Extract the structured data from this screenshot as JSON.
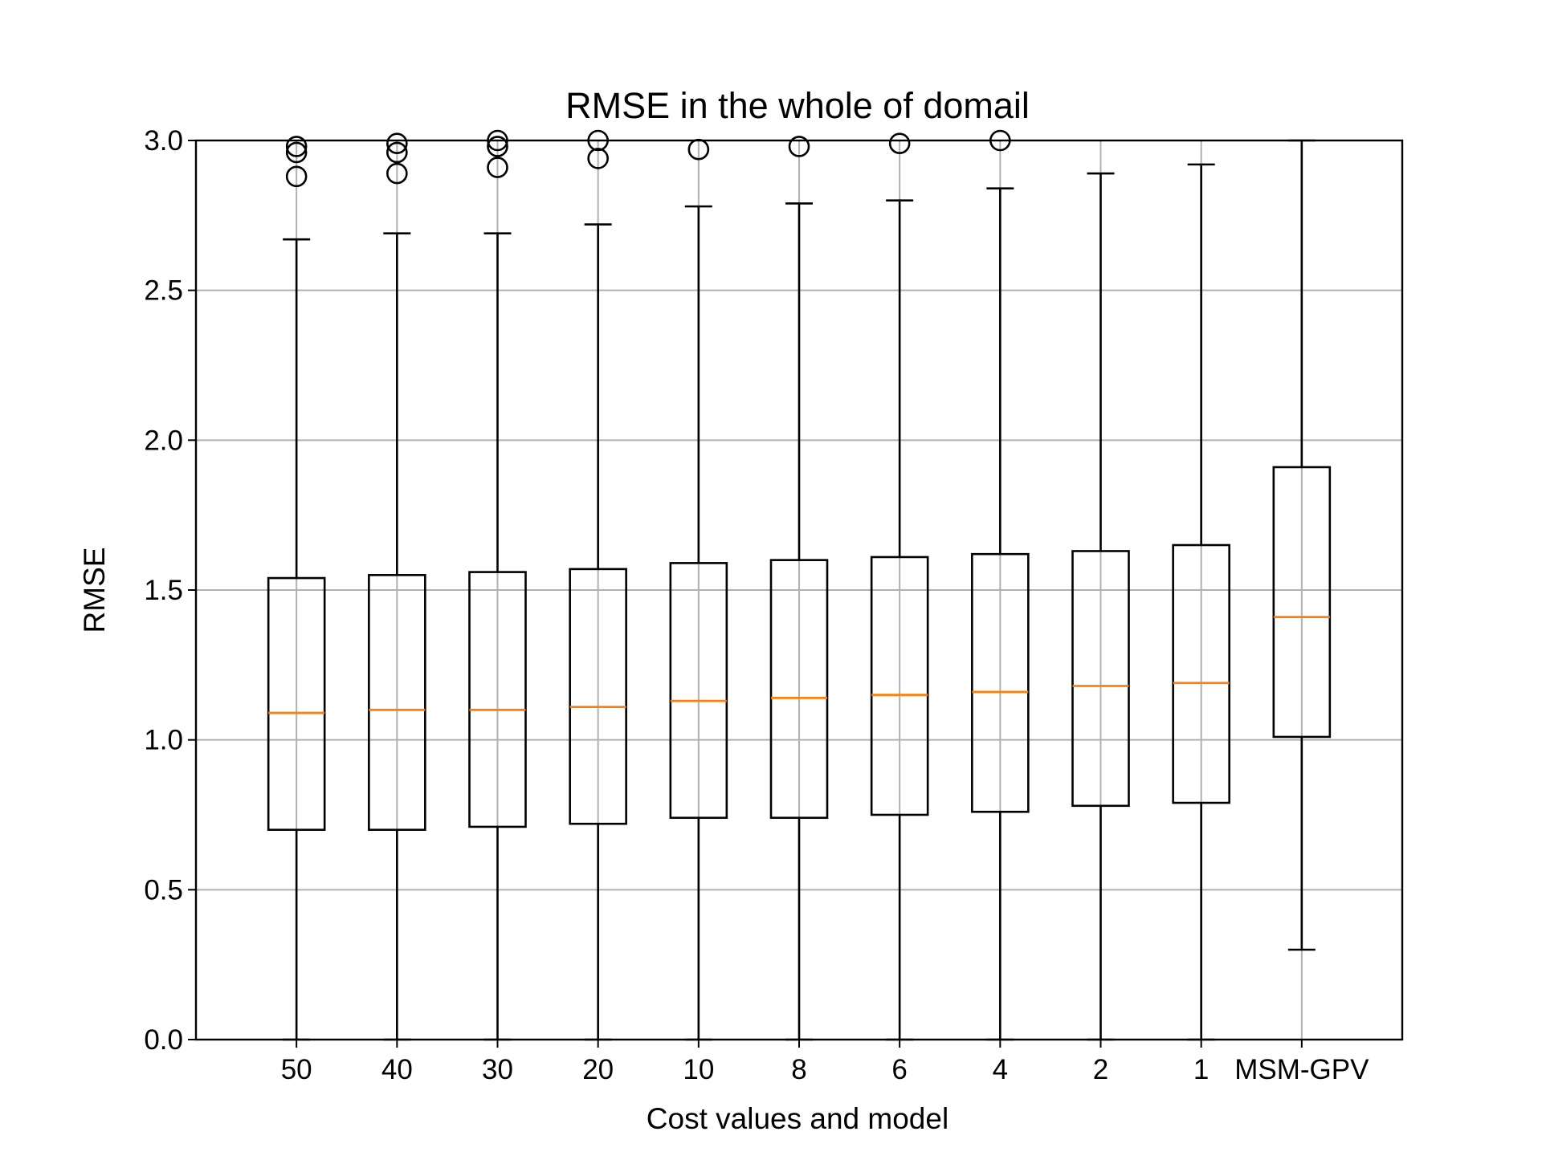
{
  "chart_data": {
    "type": "box",
    "title": "RMSE in the whole of domail",
    "xlabel": "Cost values and model",
    "ylabel": "RMSE",
    "ylim": [
      0.0,
      3.0
    ],
    "yticks": [
      "0.0",
      "0.5",
      "1.0",
      "1.5",
      "2.0",
      "2.5",
      "3.0"
    ],
    "categories": [
      "50",
      "40",
      "30",
      "20",
      "10",
      "8",
      "6",
      "4",
      "2",
      "1",
      "MSM-GPV"
    ],
    "grid": true,
    "box_color": "#000000",
    "median_color": "#ff7f0e",
    "grid_color": "#b0b0b0",
    "boxes": [
      {
        "label": "50",
        "whisker_low": 0.0,
        "q1": 0.7,
        "median": 1.09,
        "q3": 1.54,
        "whisker_high": 2.67,
        "outliers": [
          2.88,
          2.96,
          2.98
        ]
      },
      {
        "label": "40",
        "whisker_low": 0.0,
        "q1": 0.7,
        "median": 1.1,
        "q3": 1.55,
        "whisker_high": 2.69,
        "outliers": [
          2.89,
          2.96,
          2.99
        ]
      },
      {
        "label": "30",
        "whisker_low": 0.0,
        "q1": 0.71,
        "median": 1.1,
        "q3": 1.56,
        "whisker_high": 2.69,
        "outliers": [
          2.91,
          2.98,
          3.0
        ]
      },
      {
        "label": "20",
        "whisker_low": 0.0,
        "q1": 0.72,
        "median": 1.11,
        "q3": 1.57,
        "whisker_high": 2.72,
        "outliers": [
          2.94,
          3.0
        ]
      },
      {
        "label": "10",
        "whisker_low": 0.0,
        "q1": 0.74,
        "median": 1.13,
        "q3": 1.59,
        "whisker_high": 2.78,
        "outliers": [
          2.97
        ]
      },
      {
        "label": "8",
        "whisker_low": 0.0,
        "q1": 0.74,
        "median": 1.14,
        "q3": 1.6,
        "whisker_high": 2.79,
        "outliers": [
          2.98
        ]
      },
      {
        "label": "6",
        "whisker_low": 0.0,
        "q1": 0.75,
        "median": 1.15,
        "q3": 1.61,
        "whisker_high": 2.8,
        "outliers": [
          2.99
        ]
      },
      {
        "label": "4",
        "whisker_low": 0.0,
        "q1": 0.76,
        "median": 1.16,
        "q3": 1.62,
        "whisker_high": 2.84,
        "outliers": [
          3.0
        ]
      },
      {
        "label": "2",
        "whisker_low": 0.0,
        "q1": 0.78,
        "median": 1.18,
        "q3": 1.63,
        "whisker_high": 2.89,
        "outliers": []
      },
      {
        "label": "1",
        "whisker_low": 0.0,
        "q1": 0.79,
        "median": 1.19,
        "q3": 1.65,
        "whisker_high": 2.92,
        "outliers": []
      },
      {
        "label": "MSM-GPV",
        "whisker_low": 0.3,
        "q1": 1.01,
        "median": 1.41,
        "q3": 1.91,
        "whisker_high": 3.0,
        "outliers": []
      }
    ]
  }
}
